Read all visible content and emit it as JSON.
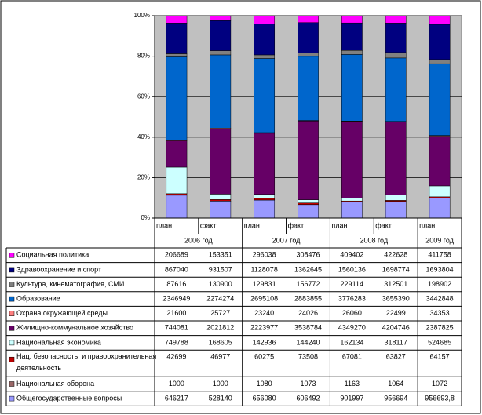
{
  "chart_data": {
    "type": "stacked_percent_bar",
    "categories": [
      "план",
      "факт",
      "план",
      "факт",
      "план",
      "факт",
      "план"
    ],
    "category_groups": [
      "2006 год",
      "2007 год",
      "2008 год",
      "2009 год"
    ],
    "ylim": [
      0,
      100
    ],
    "yticks": [
      {
        "value": 0,
        "label": "0%"
      },
      {
        "value": 20,
        "label": "20%"
      },
      {
        "value": 40,
        "label": "40%"
      },
      {
        "value": 60,
        "label": "60%"
      },
      {
        "value": 80,
        "label": "80%"
      },
      {
        "value": 100,
        "label": "100%"
      }
    ],
    "grid": true,
    "series": [
      {
        "name": "Социальная политика",
        "color": "#ff00ff",
        "values": [
          206689,
          153351,
          296038,
          308476,
          409402,
          422628,
          411758
        ]
      },
      {
        "name": "Здравоохранение и спорт",
        "color": "#000080",
        "values": [
          867040,
          931507,
          1128078,
          1362645,
          1560136,
          1698774,
          1693804
        ]
      },
      {
        "name": "Культура, кинематография, СМИ",
        "color": "#808080",
        "values": [
          87616,
          130900,
          129831,
          156772,
          229114,
          312501,
          198902
        ]
      },
      {
        "name": "Образование",
        "color": "#0066cc",
        "values": [
          2346949,
          2274274,
          2695108,
          2883855,
          3776283,
          3655390,
          3442848
        ]
      },
      {
        "name": "Охрана окружающей среды",
        "color": "#ff8080",
        "values": [
          21600,
          25727,
          23240,
          24026,
          26060,
          22499,
          34353
        ]
      },
      {
        "name": "Жилищно-коммунальное хозяйство",
        "color": "#660066",
        "values": [
          744081,
          2021812,
          2223977,
          3538784,
          4349270,
          4204746,
          2387825
        ]
      },
      {
        "name": "Национальная экономика",
        "color": "#ccffff",
        "values": [
          749788,
          168605,
          142936,
          144240,
          162134,
          318117,
          524685
        ]
      },
      {
        "name": "Нац. безопасность, и правоохранительная деятельность",
        "color": "#c00000",
        "values": [
          42699,
          46977,
          60275,
          73508,
          67081,
          63827,
          64157
        ]
      },
      {
        "name": "Национальная оборона",
        "color": "#996666",
        "values": [
          1000,
          1000,
          1080,
          1073,
          1163,
          1064,
          1072
        ]
      },
      {
        "name": "Общегосударственные вопросы",
        "color": "#9999ff",
        "values": [
          646217,
          528140,
          656080,
          606492,
          901997,
          956694,
          956693.8
        ],
        "value_labels": [
          "646217",
          "528140",
          "656080",
          "606492",
          "901997",
          "956694",
          "956693,8"
        ]
      }
    ]
  }
}
